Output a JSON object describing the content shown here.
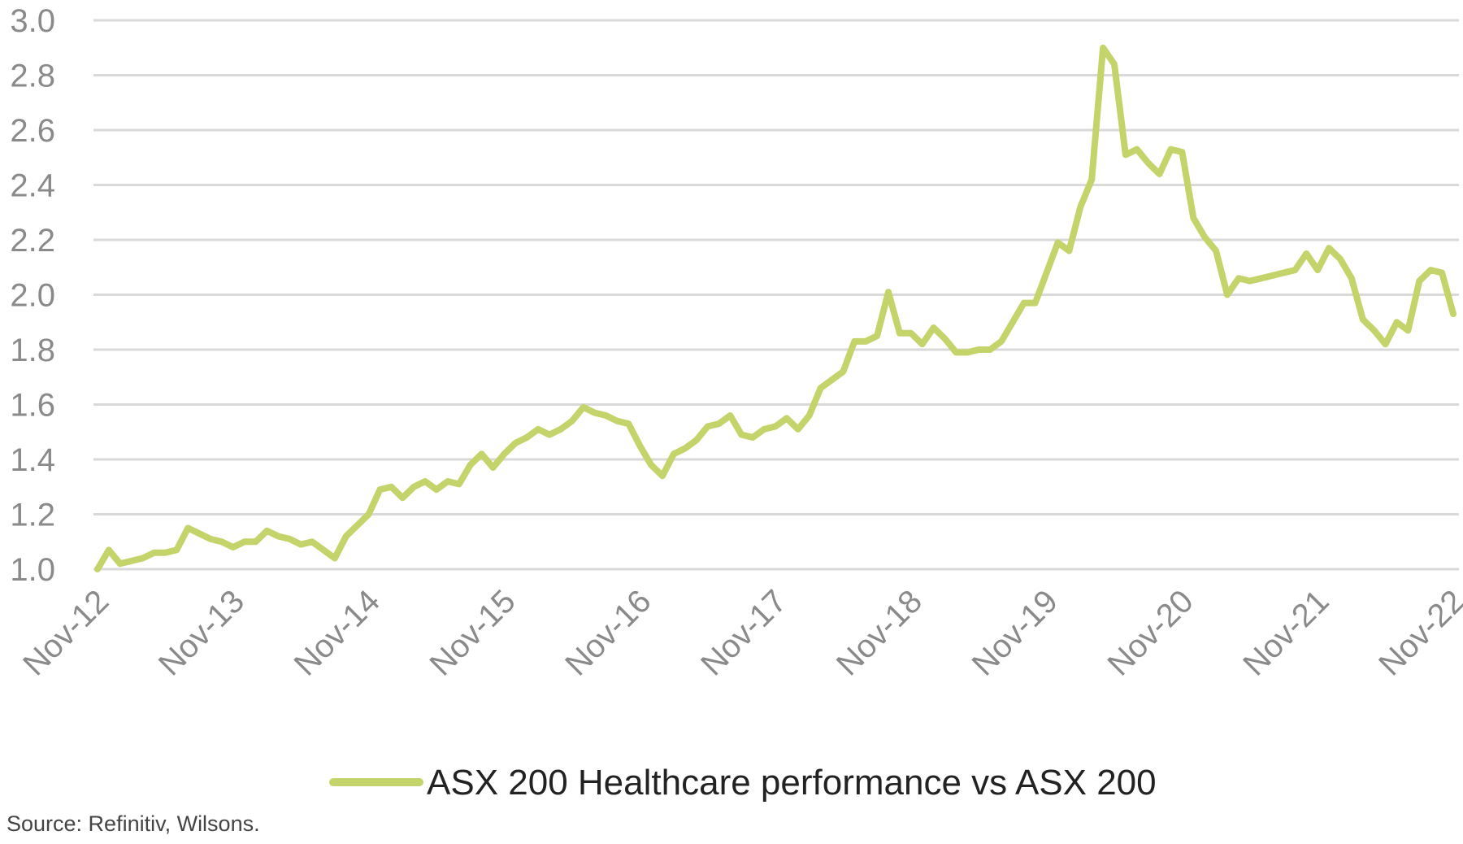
{
  "chart_data": {
    "type": "line",
    "title": "",
    "xlabel": "",
    "ylabel": "",
    "ylim": [
      1.0,
      3.0
    ],
    "yticks": [
      "1.0",
      "1.2",
      "1.4",
      "1.6",
      "1.8",
      "2.0",
      "2.2",
      "2.4",
      "2.6",
      "2.8",
      "3.0"
    ],
    "xticks": [
      "Nov-12",
      "Nov-13",
      "Nov-14",
      "Nov-15",
      "Nov-16",
      "Nov-17",
      "Nov-18",
      "Nov-19",
      "Nov-20",
      "Nov-21",
      "Nov-22"
    ],
    "grid": "horizontal",
    "legend_position": "bottom",
    "series": [
      {
        "name": "ASX 200 Healthcare performance vs ASX 200",
        "color": "#c5d36b",
        "x": [
          "Nov-12",
          "Dec-12",
          "Jan-13",
          "Feb-13",
          "Mar-13",
          "Apr-13",
          "May-13",
          "Jun-13",
          "Jul-13",
          "Aug-13",
          "Sep-13",
          "Oct-13",
          "Nov-13",
          "Dec-13",
          "Jan-14",
          "Feb-14",
          "Mar-14",
          "Apr-14",
          "May-14",
          "Jun-14",
          "Jul-14",
          "Aug-14",
          "Sep-14",
          "Oct-14",
          "Nov-14",
          "Dec-14",
          "Jan-15",
          "Feb-15",
          "Mar-15",
          "Apr-15",
          "May-15",
          "Jun-15",
          "Jul-15",
          "Aug-15",
          "Sep-15",
          "Oct-15",
          "Nov-15",
          "Dec-15",
          "Jan-16",
          "Feb-16",
          "Mar-16",
          "Apr-16",
          "May-16",
          "Jun-16",
          "Jul-16",
          "Aug-16",
          "Sep-16",
          "Oct-16",
          "Nov-16",
          "Dec-16",
          "Jan-17",
          "Feb-17",
          "Mar-17",
          "Apr-17",
          "May-17",
          "Jun-17",
          "Jul-17",
          "Aug-17",
          "Sep-17",
          "Oct-17",
          "Nov-17",
          "Dec-17",
          "Jan-18",
          "Feb-18",
          "Mar-18",
          "Apr-18",
          "May-18",
          "Jun-18",
          "Jul-18",
          "Aug-18",
          "Sep-18",
          "Oct-18",
          "Nov-18",
          "Dec-18",
          "Jan-19",
          "Feb-19",
          "Mar-19",
          "Apr-19",
          "May-19",
          "Jun-19",
          "Jul-19",
          "Aug-19",
          "Sep-19",
          "Oct-19",
          "Nov-19",
          "Dec-19",
          "Jan-20",
          "Feb-20",
          "Mar-20",
          "Apr-20",
          "May-20",
          "Jun-20",
          "Jul-20",
          "Aug-20",
          "Sep-20",
          "Oct-20",
          "Nov-20",
          "Dec-20",
          "Jan-21",
          "Feb-21",
          "Mar-21",
          "Apr-21",
          "May-21",
          "Jun-21",
          "Jul-21",
          "Aug-21",
          "Sep-21",
          "Oct-21",
          "Nov-21",
          "Dec-21",
          "Jan-22",
          "Feb-22",
          "Mar-22",
          "Apr-22",
          "May-22",
          "Jun-22",
          "Jul-22",
          "Aug-22",
          "Sep-22",
          "Oct-22",
          "Nov-22"
        ],
        "values": [
          1.0,
          1.07,
          1.02,
          1.03,
          1.04,
          1.06,
          1.06,
          1.07,
          1.15,
          1.13,
          1.11,
          1.1,
          1.08,
          1.1,
          1.1,
          1.14,
          1.12,
          1.11,
          1.09,
          1.1,
          1.07,
          1.04,
          1.12,
          1.16,
          1.2,
          1.29,
          1.3,
          1.26,
          1.3,
          1.32,
          1.29,
          1.32,
          1.31,
          1.38,
          1.42,
          1.37,
          1.42,
          1.46,
          1.48,
          1.51,
          1.49,
          1.51,
          1.54,
          1.59,
          1.57,
          1.56,
          1.54,
          1.53,
          1.45,
          1.38,
          1.34,
          1.42,
          1.44,
          1.47,
          1.52,
          1.53,
          1.56,
          1.49,
          1.48,
          1.51,
          1.52,
          1.55,
          1.51,
          1.56,
          1.66,
          1.69,
          1.72,
          1.83,
          1.83,
          1.85,
          2.01,
          1.86,
          1.86,
          1.82,
          1.88,
          1.84,
          1.79,
          1.79,
          1.8,
          1.8,
          1.83,
          1.9,
          1.97,
          1.97,
          2.08,
          2.19,
          2.16,
          2.32,
          2.42,
          2.9,
          2.84,
          2.51,
          2.53,
          2.48,
          2.44,
          2.53,
          2.52,
          2.28,
          2.21,
          2.16,
          2.0,
          2.06,
          2.05,
          2.06,
          2.07,
          2.08,
          2.09,
          2.15,
          2.09,
          2.17,
          2.13,
          2.06,
          1.91,
          1.87,
          1.82,
          1.9,
          1.87,
          2.05,
          2.09,
          2.08,
          1.93
        ]
      }
    ],
    "source": "Source: Refinitiv, Wilsons."
  }
}
